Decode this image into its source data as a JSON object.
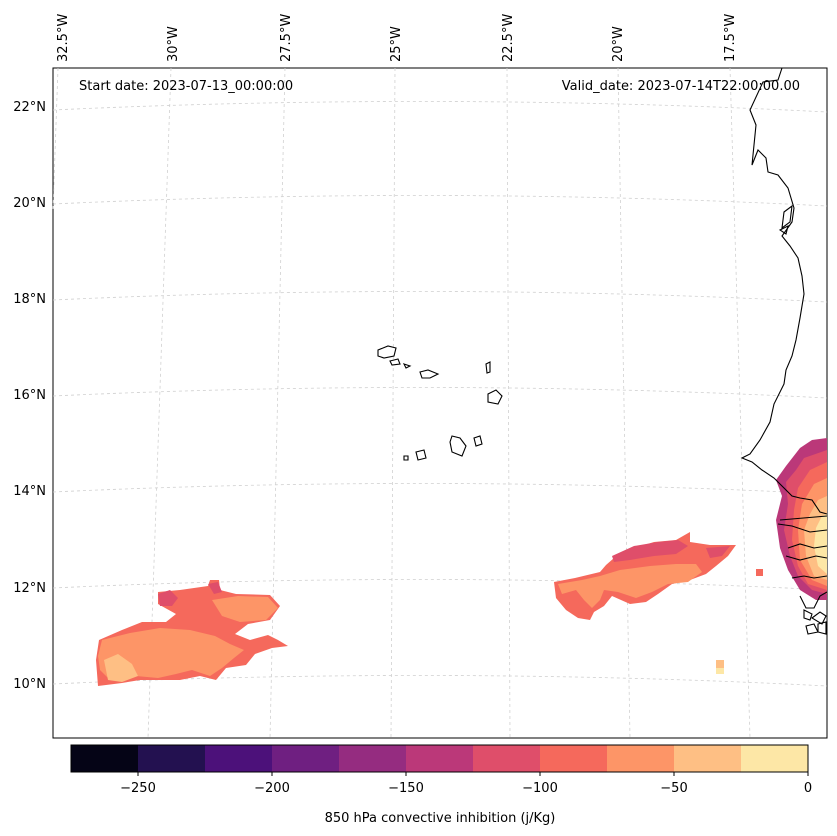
{
  "map": {
    "start_label": "Start date: 2023-07-13_00:00:00",
    "valid_label": "Valid_date: 2023-07-14T22:00:00.00",
    "lon_labels": [
      "32.5°W",
      "30°W",
      "27.5°W",
      "25°W",
      "22.5°W",
      "20°W",
      "17.5°W"
    ],
    "lat_labels": [
      "22°N",
      "20°N",
      "18°N",
      "16°N",
      "14°N",
      "12°N",
      "10°N"
    ],
    "ocean_color": "#ffffff",
    "coast_color": "#000000",
    "grid_color": "#cccccc"
  },
  "colorbar": {
    "label": "850 hPa convective inhibition (j/Kg)",
    "tick_labels": [
      "−250",
      "−200",
      "−150",
      "−100",
      "−50",
      "0"
    ],
    "colors": [
      "#050416",
      "#231150",
      "#4c117a",
      "#6f1f81",
      "#952c80",
      "#bb3879",
      "#df4e6a",
      "#f5695c",
      "#fd9567",
      "#febf84",
      "#fde7a6"
    ]
  }
}
